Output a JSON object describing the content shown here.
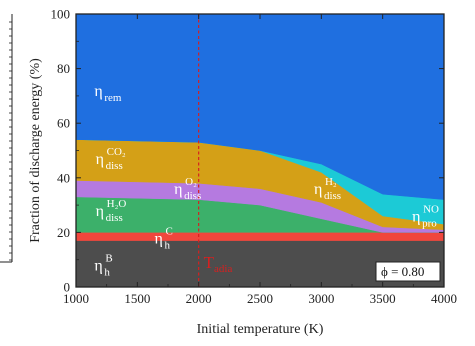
{
  "chart_data": {
    "type": "area",
    "stacked": true,
    "xlabel": "Initial temperature (K)",
    "ylabel": "Fraction of discharge energy (%)",
    "xlim": [
      1000,
      4000
    ],
    "ylim": [
      0,
      100
    ],
    "xticks": [
      "1000",
      "1500",
      "2000",
      "2500",
      "3000",
      "3500",
      "4000"
    ],
    "yticks": [
      "0",
      "20",
      "40",
      "60",
      "80",
      "100"
    ],
    "x": [
      1000,
      2000,
      2500,
      3000,
      3500,
      4000
    ],
    "series": [
      {
        "key": "eta_h_B",
        "color": "#4d4d4d",
        "values": [
          17,
          17,
          17,
          17,
          17,
          17
        ]
      },
      {
        "key": "eta_h_C",
        "color": "#f0463c",
        "values": [
          3,
          3,
          3,
          3,
          3,
          3
        ]
      },
      {
        "key": "eta_diss_H2O",
        "color": "#3cb06a",
        "values": [
          13,
          12,
          10,
          5,
          0,
          0
        ]
      },
      {
        "key": "eta_diss_O2",
        "color": "#b57ae0",
        "values": [
          6,
          6,
          6,
          6,
          2,
          1
        ]
      },
      {
        "key": "eta_diss_H2",
        "color": "#d4a017",
        "values": [
          15,
          15,
          14,
          11,
          4,
          2
        ]
      },
      {
        "key": "eta_pro_NO",
        "color": "#1ccad6",
        "values": [
          0,
          0,
          0,
          3,
          8,
          9
        ]
      },
      {
        "key": "eta_rem",
        "color": "#1f6fe0",
        "values": [
          46,
          47,
          50,
          55,
          66,
          68
        ]
      }
    ],
    "vline": {
      "x": 2000,
      "color": "#d62020",
      "style": "dashed"
    },
    "annotations": [
      {
        "key": "rem",
        "main": "η",
        "sub": "rem",
        "sup": "",
        "x": 1150,
        "y": 70
      },
      {
        "key": "co2",
        "main": "η",
        "sub": "diss",
        "sup": "CO₂",
        "x": 1160,
        "y": 45
      },
      {
        "key": "o2",
        "main": "η",
        "sub": "diss",
        "sup": "O₂",
        "x": 1800,
        "y": 34
      },
      {
        "key": "h2o",
        "main": "η",
        "sub": "diss",
        "sup": "H₂O",
        "x": 1160,
        "y": 26
      },
      {
        "key": "h2",
        "main": "η",
        "sub": "diss",
        "sup": "H₂",
        "x": 2940,
        "y": 34
      },
      {
        "key": "no",
        "main": "η",
        "sub": "pro",
        "sup": "NO",
        "x": 3740,
        "y": 24
      },
      {
        "key": "hc",
        "main": "η",
        "sub": "h",
        "sup": "C",
        "x": 1640,
        "y": 16
      },
      {
        "key": "hb",
        "main": "η",
        "sub": "h",
        "sup": "B",
        "x": 1150,
        "y": 6
      }
    ],
    "t_adia": {
      "main": "T",
      "sub": "adia"
    },
    "phi_label": "ϕ = 0.80"
  }
}
